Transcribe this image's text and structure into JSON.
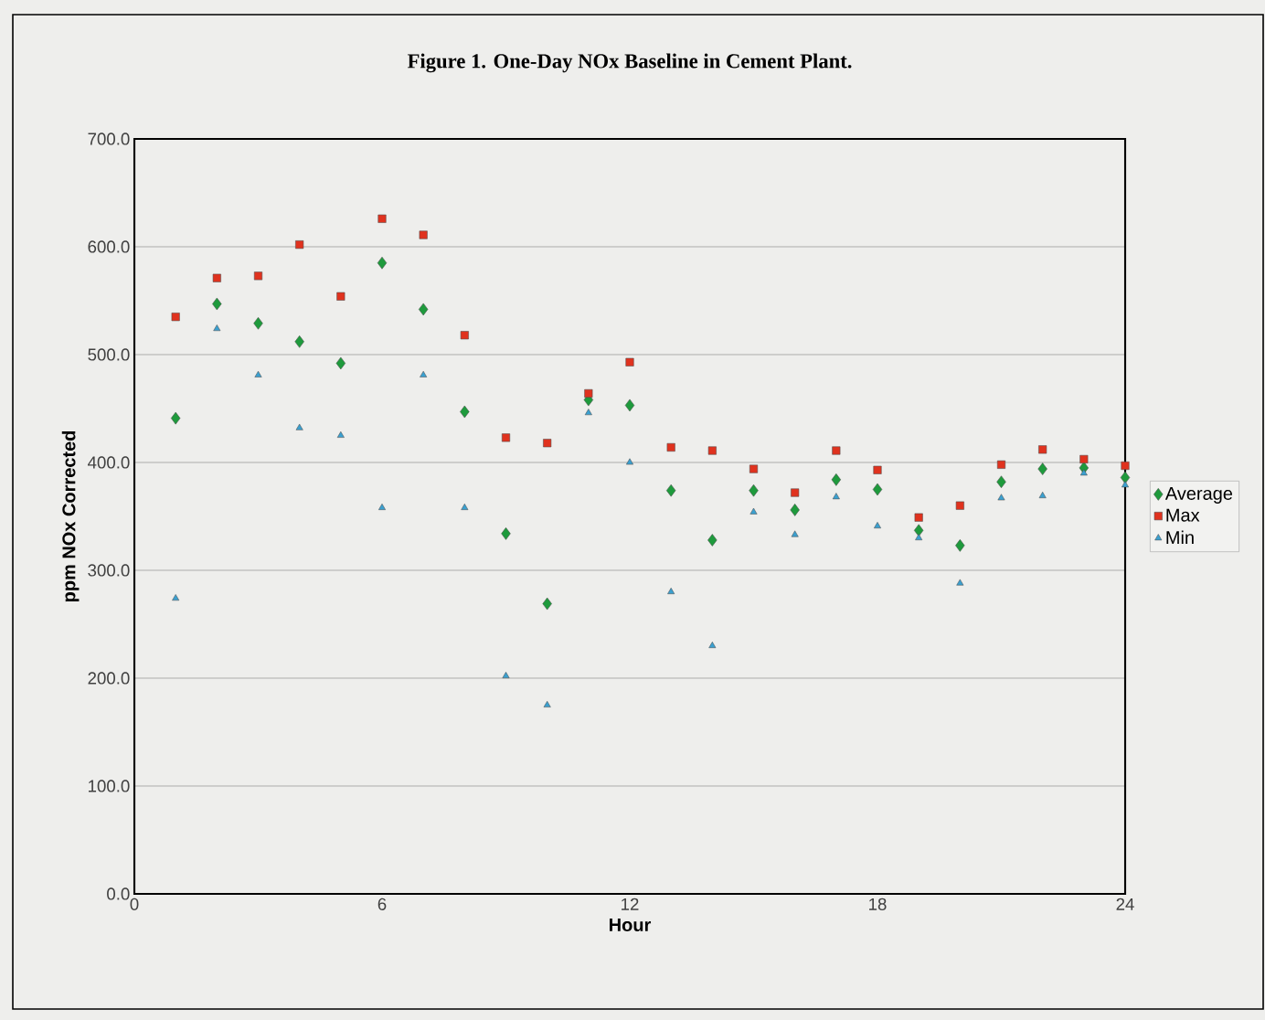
{
  "chart_data": {
    "type": "scatter",
    "title": "Figure 1. One-Day NOx Baseline in Cement Plant.",
    "xlabel": "Hour",
    "ylabel": "ppm NOx Corrected",
    "x": [
      1,
      2,
      3,
      4,
      5,
      6,
      7,
      8,
      9,
      10,
      11,
      12,
      13,
      14,
      15,
      16,
      17,
      18,
      19,
      20,
      21,
      22,
      23,
      24
    ],
    "series": [
      {
        "name": "Average",
        "color": "#1e9a3c",
        "marker": "diamond",
        "values": [
          441,
          547,
          529,
          512,
          492,
          585,
          542,
          447,
          334,
          269,
          458,
          453,
          374,
          328,
          374,
          356,
          384,
          375,
          337,
          323,
          382,
          394,
          395,
          386
        ]
      },
      {
        "name": "Max",
        "color": "#e0321e",
        "marker": "square",
        "values": [
          535,
          571,
          573,
          602,
          554,
          626,
          611,
          518,
          423,
          418,
          464,
          493,
          414,
          411,
          394,
          372,
          411,
          393,
          349,
          360,
          398,
          412,
          403,
          397
        ]
      },
      {
        "name": "Min",
        "color": "#3aa0d0",
        "marker": "triangle",
        "values": [
          274,
          524,
          481,
          432,
          425,
          358,
          481,
          358,
          202,
          175,
          446,
          400,
          280,
          230,
          354,
          333,
          368,
          341,
          330,
          288,
          367,
          369,
          390,
          379
        ]
      }
    ],
    "xlim": [
      0,
      24
    ],
    "xticks": [
      0,
      6,
      12,
      18,
      24
    ],
    "ylim": [
      0,
      700
    ],
    "yticks": [
      {
        "value": 0,
        "label": "0.0"
      },
      {
        "value": 100,
        "label": "100.0"
      },
      {
        "value": 200,
        "label": "200.0"
      },
      {
        "value": 300,
        "label": "300.0"
      },
      {
        "value": 400,
        "label": "400.0"
      },
      {
        "value": 500,
        "label": "500.0"
      },
      {
        "value": 600,
        "label": "600.0"
      },
      {
        "value": 700,
        "label": "700.0"
      }
    ],
    "grid": "y",
    "legend": "right"
  }
}
